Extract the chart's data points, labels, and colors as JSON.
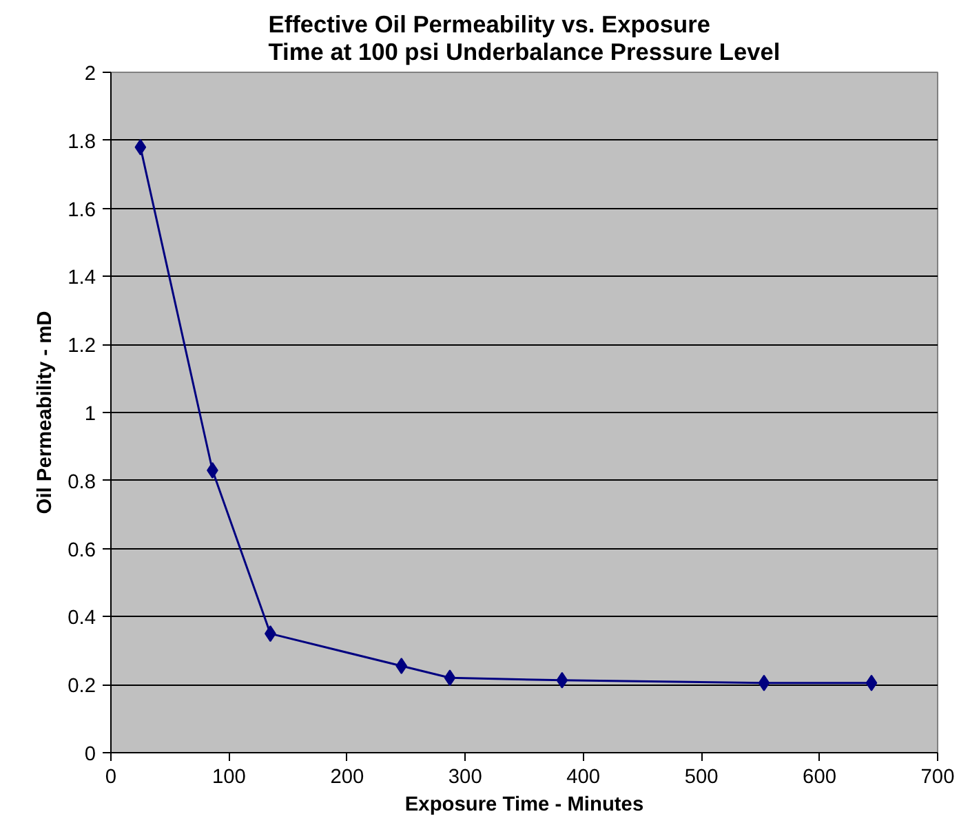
{
  "chart_data": {
    "type": "line",
    "title": "Effective Oil Permeability vs. Exposure Time at 100 psi Underbalance Pressure Level",
    "xlabel": "Exposure Time - Minutes",
    "ylabel": "Oil Permeability - mD",
    "x": [
      25,
      86,
      135,
      246,
      287,
      382,
      553,
      644
    ],
    "series": [
      {
        "color": "#000080",
        "values": [
          1.78,
          0.83,
          0.35,
          0.255,
          0.22,
          0.213,
          0.205,
          0.205
        ]
      }
    ],
    "xlim": [
      0,
      700
    ],
    "xticks": [
      0,
      100,
      200,
      300,
      400,
      500,
      600,
      700
    ],
    "ylim": [
      0,
      2
    ],
    "yticks": [
      0,
      0.2,
      0.4,
      0.6,
      0.8,
      1,
      1.2,
      1.4,
      1.6,
      1.8,
      2
    ],
    "grid": "y",
    "marker": "diamond",
    "line_style": "solid"
  }
}
